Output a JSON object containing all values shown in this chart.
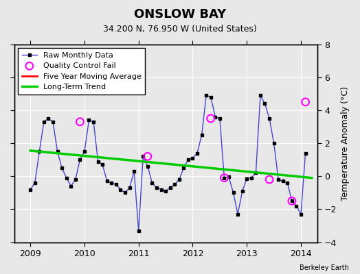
{
  "title": "ONSLOW BAY",
  "subtitle": "34.200 N, 76.950 W (United States)",
  "ylabel": "Temperature Anomaly (°C)",
  "credit": "Berkeley Earth",
  "ylim": [
    -4,
    8
  ],
  "yticks": [
    -4,
    -2,
    0,
    2,
    4,
    6,
    8
  ],
  "background_color": "#e8e8e8",
  "raw_x": [
    2009.0,
    2009.083,
    2009.167,
    2009.25,
    2009.333,
    2009.417,
    2009.5,
    2009.583,
    2009.667,
    2009.75,
    2009.833,
    2009.917,
    2010.0,
    2010.083,
    2010.167,
    2010.25,
    2010.333,
    2010.417,
    2010.5,
    2010.583,
    2010.667,
    2010.75,
    2010.833,
    2010.917,
    2011.0,
    2011.083,
    2011.167,
    2011.25,
    2011.333,
    2011.417,
    2011.5,
    2011.583,
    2011.667,
    2011.75,
    2011.833,
    2011.917,
    2012.0,
    2012.083,
    2012.167,
    2012.25,
    2012.333,
    2012.417,
    2012.5,
    2012.583,
    2012.667,
    2012.75,
    2012.833,
    2012.917,
    2013.0,
    2013.083,
    2013.167,
    2013.25,
    2013.333,
    2013.417,
    2013.5,
    2013.583,
    2013.667,
    2013.75,
    2013.833,
    2013.917,
    2014.0,
    2014.083
  ],
  "raw_y": [
    -0.8,
    -0.4,
    1.5,
    3.3,
    3.5,
    3.3,
    1.5,
    0.5,
    -0.1,
    -0.6,
    -0.2,
    1.0,
    1.5,
    3.4,
    3.3,
    0.9,
    0.7,
    -0.3,
    -0.4,
    -0.5,
    -0.8,
    -1.0,
    -0.7,
    0.3,
    -3.3,
    1.2,
    0.6,
    -0.4,
    -0.7,
    -0.8,
    -0.9,
    -0.7,
    -0.5,
    -0.2,
    0.5,
    1.0,
    1.1,
    1.4,
    2.5,
    4.9,
    4.8,
    3.6,
    3.5,
    -0.1,
    -0.05,
    -1.0,
    -2.3,
    -0.9,
    -0.15,
    -0.1,
    0.2,
    4.9,
    4.4,
    3.5,
    2.0,
    -0.2,
    -0.3,
    -0.4,
    -1.5,
    -1.8,
    -2.3,
    1.4
  ],
  "qc_fail_x": [
    2009.917,
    2011.167,
    2012.333,
    2012.583,
    2013.417,
    2013.833,
    2014.083
  ],
  "qc_fail_y": [
    3.3,
    1.2,
    3.5,
    -0.1,
    -0.2,
    -1.5,
    4.5
  ],
  "trend_x": [
    2009.0,
    2014.2
  ],
  "trend_y": [
    1.55,
    -0.1
  ],
  "xlim": [
    2008.7,
    2014.3
  ],
  "xticks": [
    2009,
    2010,
    2011,
    2012,
    2013,
    2014
  ],
  "grid_color": "#ffffff",
  "raw_line_color": "#4444cc",
  "raw_marker_color": "#000000",
  "qc_color": "#ff00ff",
  "trend_color": "#00cc00",
  "five_yr_color": "#ff0000",
  "legend_labels": [
    "Raw Monthly Data",
    "Quality Control Fail",
    "Five Year Moving Average",
    "Long-Term Trend"
  ]
}
